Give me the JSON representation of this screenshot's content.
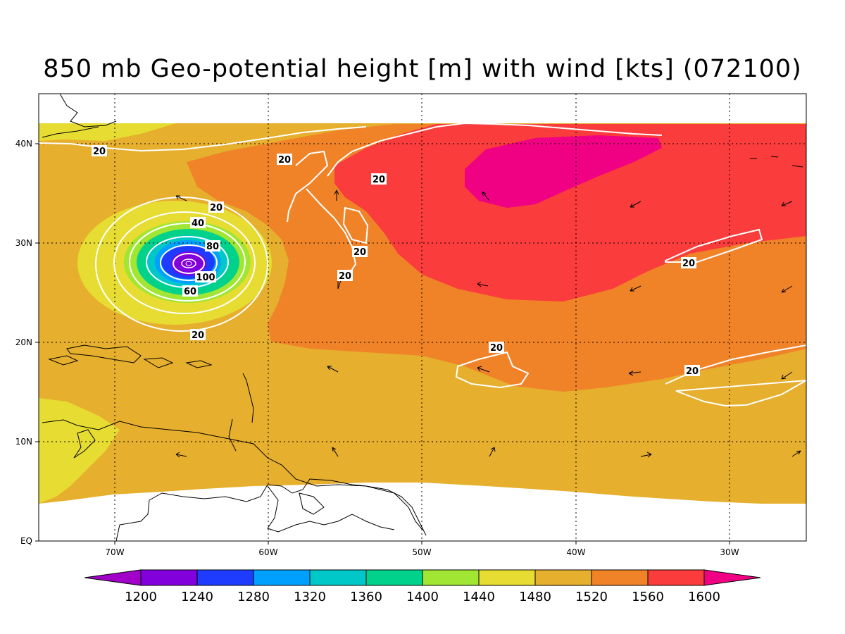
{
  "title": "850 mb Geo-potential height [m] with wind [kts] (072100)",
  "lat_labels": [
    "40N",
    "30N",
    "20N",
    "10N",
    "EQ"
  ],
  "lon_labels": [
    "70W",
    "60W",
    "50W",
    "40W",
    "30W"
  ],
  "colorbar": {
    "labels": [
      "1200",
      "1240",
      "1280",
      "1320",
      "1360",
      "1400",
      "1440",
      "1480",
      "1520",
      "1560",
      "1600"
    ],
    "colors": [
      "#a000c8",
      "#8200dc",
      "#1e3cff",
      "#00a0ff",
      "#00c8c8",
      "#00d28c",
      "#a0e632",
      "#e6dc32",
      "#e6af2d",
      "#f08228",
      "#fa3c3c",
      "#f00082"
    ]
  },
  "contour_labels": {
    "l20a": "20",
    "l20b": "20",
    "l20c": "20",
    "l20d": "20",
    "l20e": "20",
    "l20f": "20",
    "l20g": "20",
    "l20h": "20",
    "l20i": "20",
    "l20j": "20",
    "l40": "40",
    "l80": "80",
    "l100": "100",
    "l60": "60"
  }
}
